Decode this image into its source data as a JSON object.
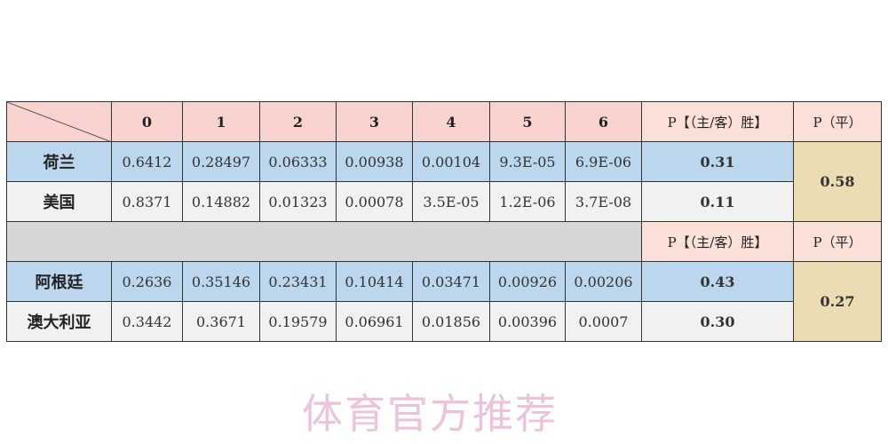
{
  "header": {
    "columns": [
      "0",
      "1",
      "2",
      "3",
      "4",
      "5",
      "6"
    ],
    "win_label": "P【（主/客）胜】",
    "draw_label": "P（平）"
  },
  "matches": [
    {
      "teams": [
        {
          "name": "荷兰",
          "probs": [
            "0.6412",
            "0.28497",
            "0.06333",
            "0.00938",
            "0.00104",
            "9.3E-05",
            "6.9E-06"
          ],
          "win": "0.31"
        },
        {
          "name": "美国",
          "probs": [
            "0.8371",
            "0.14882",
            "0.01323",
            "0.00078",
            "3.5E-05",
            "1.2E-06",
            "3.7E-08"
          ],
          "win": "0.11"
        }
      ],
      "draw": "0.58"
    },
    {
      "teams": [
        {
          "name": "阿根廷",
          "probs": [
            "0.2636",
            "0.35146",
            "0.23431",
            "0.10414",
            "0.03471",
            "0.00926",
            "0.00206"
          ],
          "win": "0.43"
        },
        {
          "name": "澳大利亚",
          "probs": [
            "0.3442",
            "0.3671",
            "0.19579",
            "0.06961",
            "0.01856",
            "0.00396",
            "0.0007"
          ],
          "win": "0.30"
        }
      ],
      "draw": "0.27"
    }
  ],
  "watermark": "体育官方推荐",
  "colors": {
    "header": "#f9d3d0",
    "blue_row": "#bcd6ee",
    "light_row": "#f1f1f1",
    "draw_cell": "#ecdcb4",
    "separator": "#d6d6d6"
  }
}
